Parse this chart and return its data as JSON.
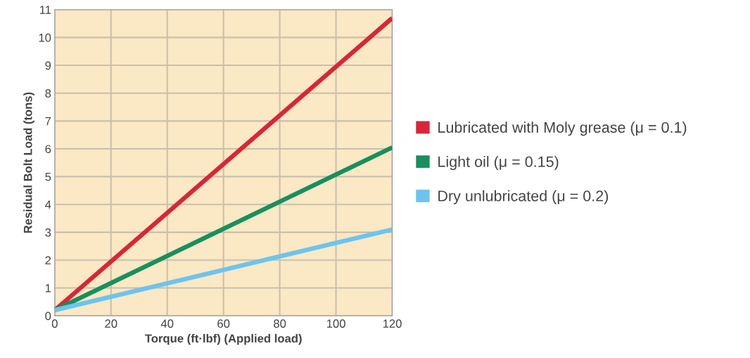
{
  "chart_data": {
    "type": "line",
    "xlabel": "Torque (ft·lbf) (Applied load)",
    "ylabel": "Residual Bolt Load (tons)",
    "x": [
      0,
      120
    ],
    "series": [
      {
        "name": "Lubricated with Moly grease (μ = 0.1)",
        "color": "#d92636",
        "values": [
          0.2,
          10.7
        ]
      },
      {
        "name": "Light oil (μ = 0.15)",
        "color": "#17905e",
        "values": [
          0.2,
          6.05
        ]
      },
      {
        "name": "Dry unlubricated (μ = 0.2)",
        "color": "#6cc4ee",
        "values": [
          0.2,
          3.1
        ]
      }
    ],
    "xlim": [
      0,
      120
    ],
    "xticks": [
      0,
      20,
      40,
      60,
      80,
      100,
      120
    ],
    "ylim": [
      0,
      11
    ],
    "yticks": [
      0,
      1,
      2,
      3,
      4,
      5,
      6,
      7,
      8,
      9,
      10,
      11
    ],
    "grid": true,
    "legend": "right",
    "marker": "none",
    "line_style": "solid"
  }
}
